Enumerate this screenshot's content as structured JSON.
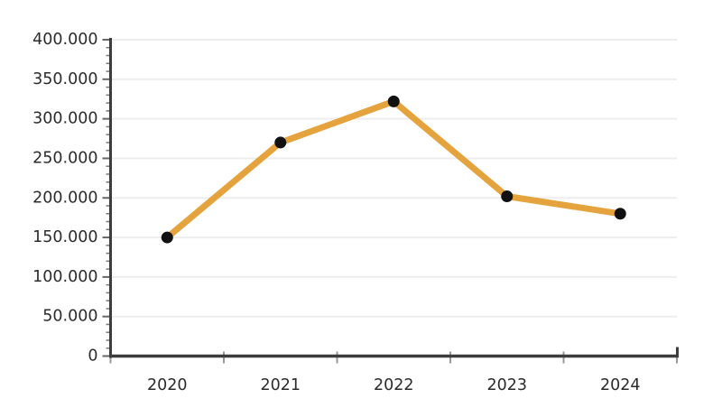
{
  "page": {
    "background_color": "#ffffff"
  },
  "chart_data": {
    "type": "line",
    "title": "",
    "xlabel": "",
    "ylabel": "",
    "categories": [
      "2020",
      "2021",
      "2022",
      "2023",
      "2024"
    ],
    "values": [
      150000,
      270000,
      322000,
      202000,
      180000
    ],
    "ylim": [
      0,
      400000
    ],
    "y_major_step": 50000,
    "y_minor_step": 10000,
    "y_tick_labels": [
      "0",
      "50.000",
      "100.000",
      "150.000",
      "200.000",
      "250.000",
      "300.000",
      "350.000",
      "400.000"
    ],
    "thousands_separator": ".",
    "grid": "horizontal-major",
    "legend": "none",
    "marker": "filled-circle",
    "colors": {
      "line": "#E5A33D",
      "marker": "#111111",
      "axis": "#3d3d3d",
      "gridline": "#ededed",
      "major_tick": "#666666",
      "minor_tick": "#777777",
      "boundary_tick": "#999999",
      "label": "#2b2b2b",
      "background": "#ffffff"
    }
  }
}
